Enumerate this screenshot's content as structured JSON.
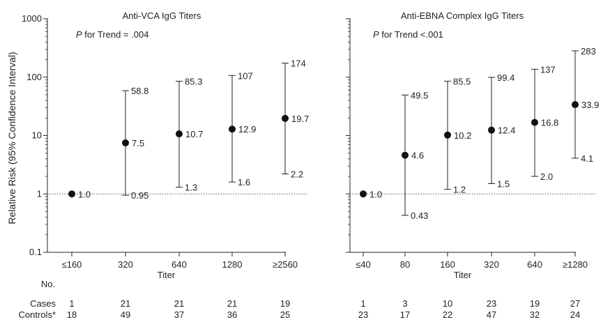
{
  "figure": {
    "ylabel": "Relative Risk (95% Confidence Interval)",
    "y_ticks": [
      "1000",
      "100",
      "10",
      "1",
      "0.1"
    ],
    "table_header": "No.",
    "row_labels": [
      "Cases",
      "Controls*"
    ]
  },
  "chart_data": [
    {
      "type": "scatter",
      "title": "Anti-VCA IgG Titers",
      "trend_p_label": "P",
      "trend_text": " for Trend = .004",
      "xlabel": "Titer",
      "ylabel": "Relative Risk (95% Confidence Interval)",
      "y_scale": "log",
      "ylim": [
        0.1,
        1000
      ],
      "reference_line": 1,
      "categories": [
        "≤160",
        "320",
        "640",
        "1280",
        "≥2560"
      ],
      "points": [
        {
          "x": "≤160",
          "rr": 1.0,
          "rr_label": "1.0",
          "lower": null,
          "upper": null,
          "lower_label": "",
          "upper_label": ""
        },
        {
          "x": "320",
          "rr": 7.5,
          "rr_label": "7.5",
          "lower": 0.95,
          "upper": 58.8,
          "lower_label": "0.95",
          "upper_label": "58.8"
        },
        {
          "x": "640",
          "rr": 10.7,
          "rr_label": "10.7",
          "lower": 1.3,
          "upper": 85.3,
          "lower_label": "1.3",
          "upper_label": "85.3"
        },
        {
          "x": "1280",
          "rr": 12.9,
          "rr_label": "12.9",
          "lower": 1.6,
          "upper": 107,
          "lower_label": "1.6",
          "upper_label": "107"
        },
        {
          "x": "≥2560",
          "rr": 19.7,
          "rr_label": "19.7",
          "lower": 2.2,
          "upper": 174,
          "lower_label": "2.2",
          "upper_label": "174"
        }
      ],
      "cases": [
        "1",
        "21",
        "21",
        "21",
        "19"
      ],
      "controls": [
        "18",
        "49",
        "37",
        "36",
        "25"
      ]
    },
    {
      "type": "scatter",
      "title": "Anti-EBNA Complex IgG Titers",
      "trend_p_label": "P",
      "trend_text": " for Trend <.001",
      "xlabel": "Titer",
      "ylabel": "",
      "y_scale": "log",
      "ylim": [
        0.1,
        1000
      ],
      "reference_line": 1,
      "categories": [
        "≤40",
        "80",
        "160",
        "320",
        "640",
        "≥1280"
      ],
      "points": [
        {
          "x": "≤40",
          "rr": 1.0,
          "rr_label": "1.0",
          "lower": null,
          "upper": null,
          "lower_label": "",
          "upper_label": ""
        },
        {
          "x": "80",
          "rr": 4.6,
          "rr_label": "4.6",
          "lower": 0.43,
          "upper": 49.5,
          "lower_label": "0.43",
          "upper_label": "49.5"
        },
        {
          "x": "160",
          "rr": 10.2,
          "rr_label": "10.2",
          "lower": 1.2,
          "upper": 85.5,
          "lower_label": "1.2",
          "upper_label": "85.5"
        },
        {
          "x": "320",
          "rr": 12.4,
          "rr_label": "12.4",
          "lower": 1.5,
          "upper": 99.4,
          "lower_label": "1.5",
          "upper_label": "99.4"
        },
        {
          "x": "640",
          "rr": 16.8,
          "rr_label": "16.8",
          "lower": 2.0,
          "upper": 137,
          "lower_label": "2.0",
          "upper_label": "137"
        },
        {
          "x": "≥1280",
          "rr": 33.9,
          "rr_label": "33.9",
          "lower": 4.1,
          "upper": 283,
          "lower_label": "4.1",
          "upper_label": "283"
        }
      ],
      "cases": [
        "1",
        "3",
        "10",
        "23",
        "19",
        "27"
      ],
      "controls": [
        "23",
        "17",
        "22",
        "47",
        "32",
        "24"
      ]
    }
  ]
}
